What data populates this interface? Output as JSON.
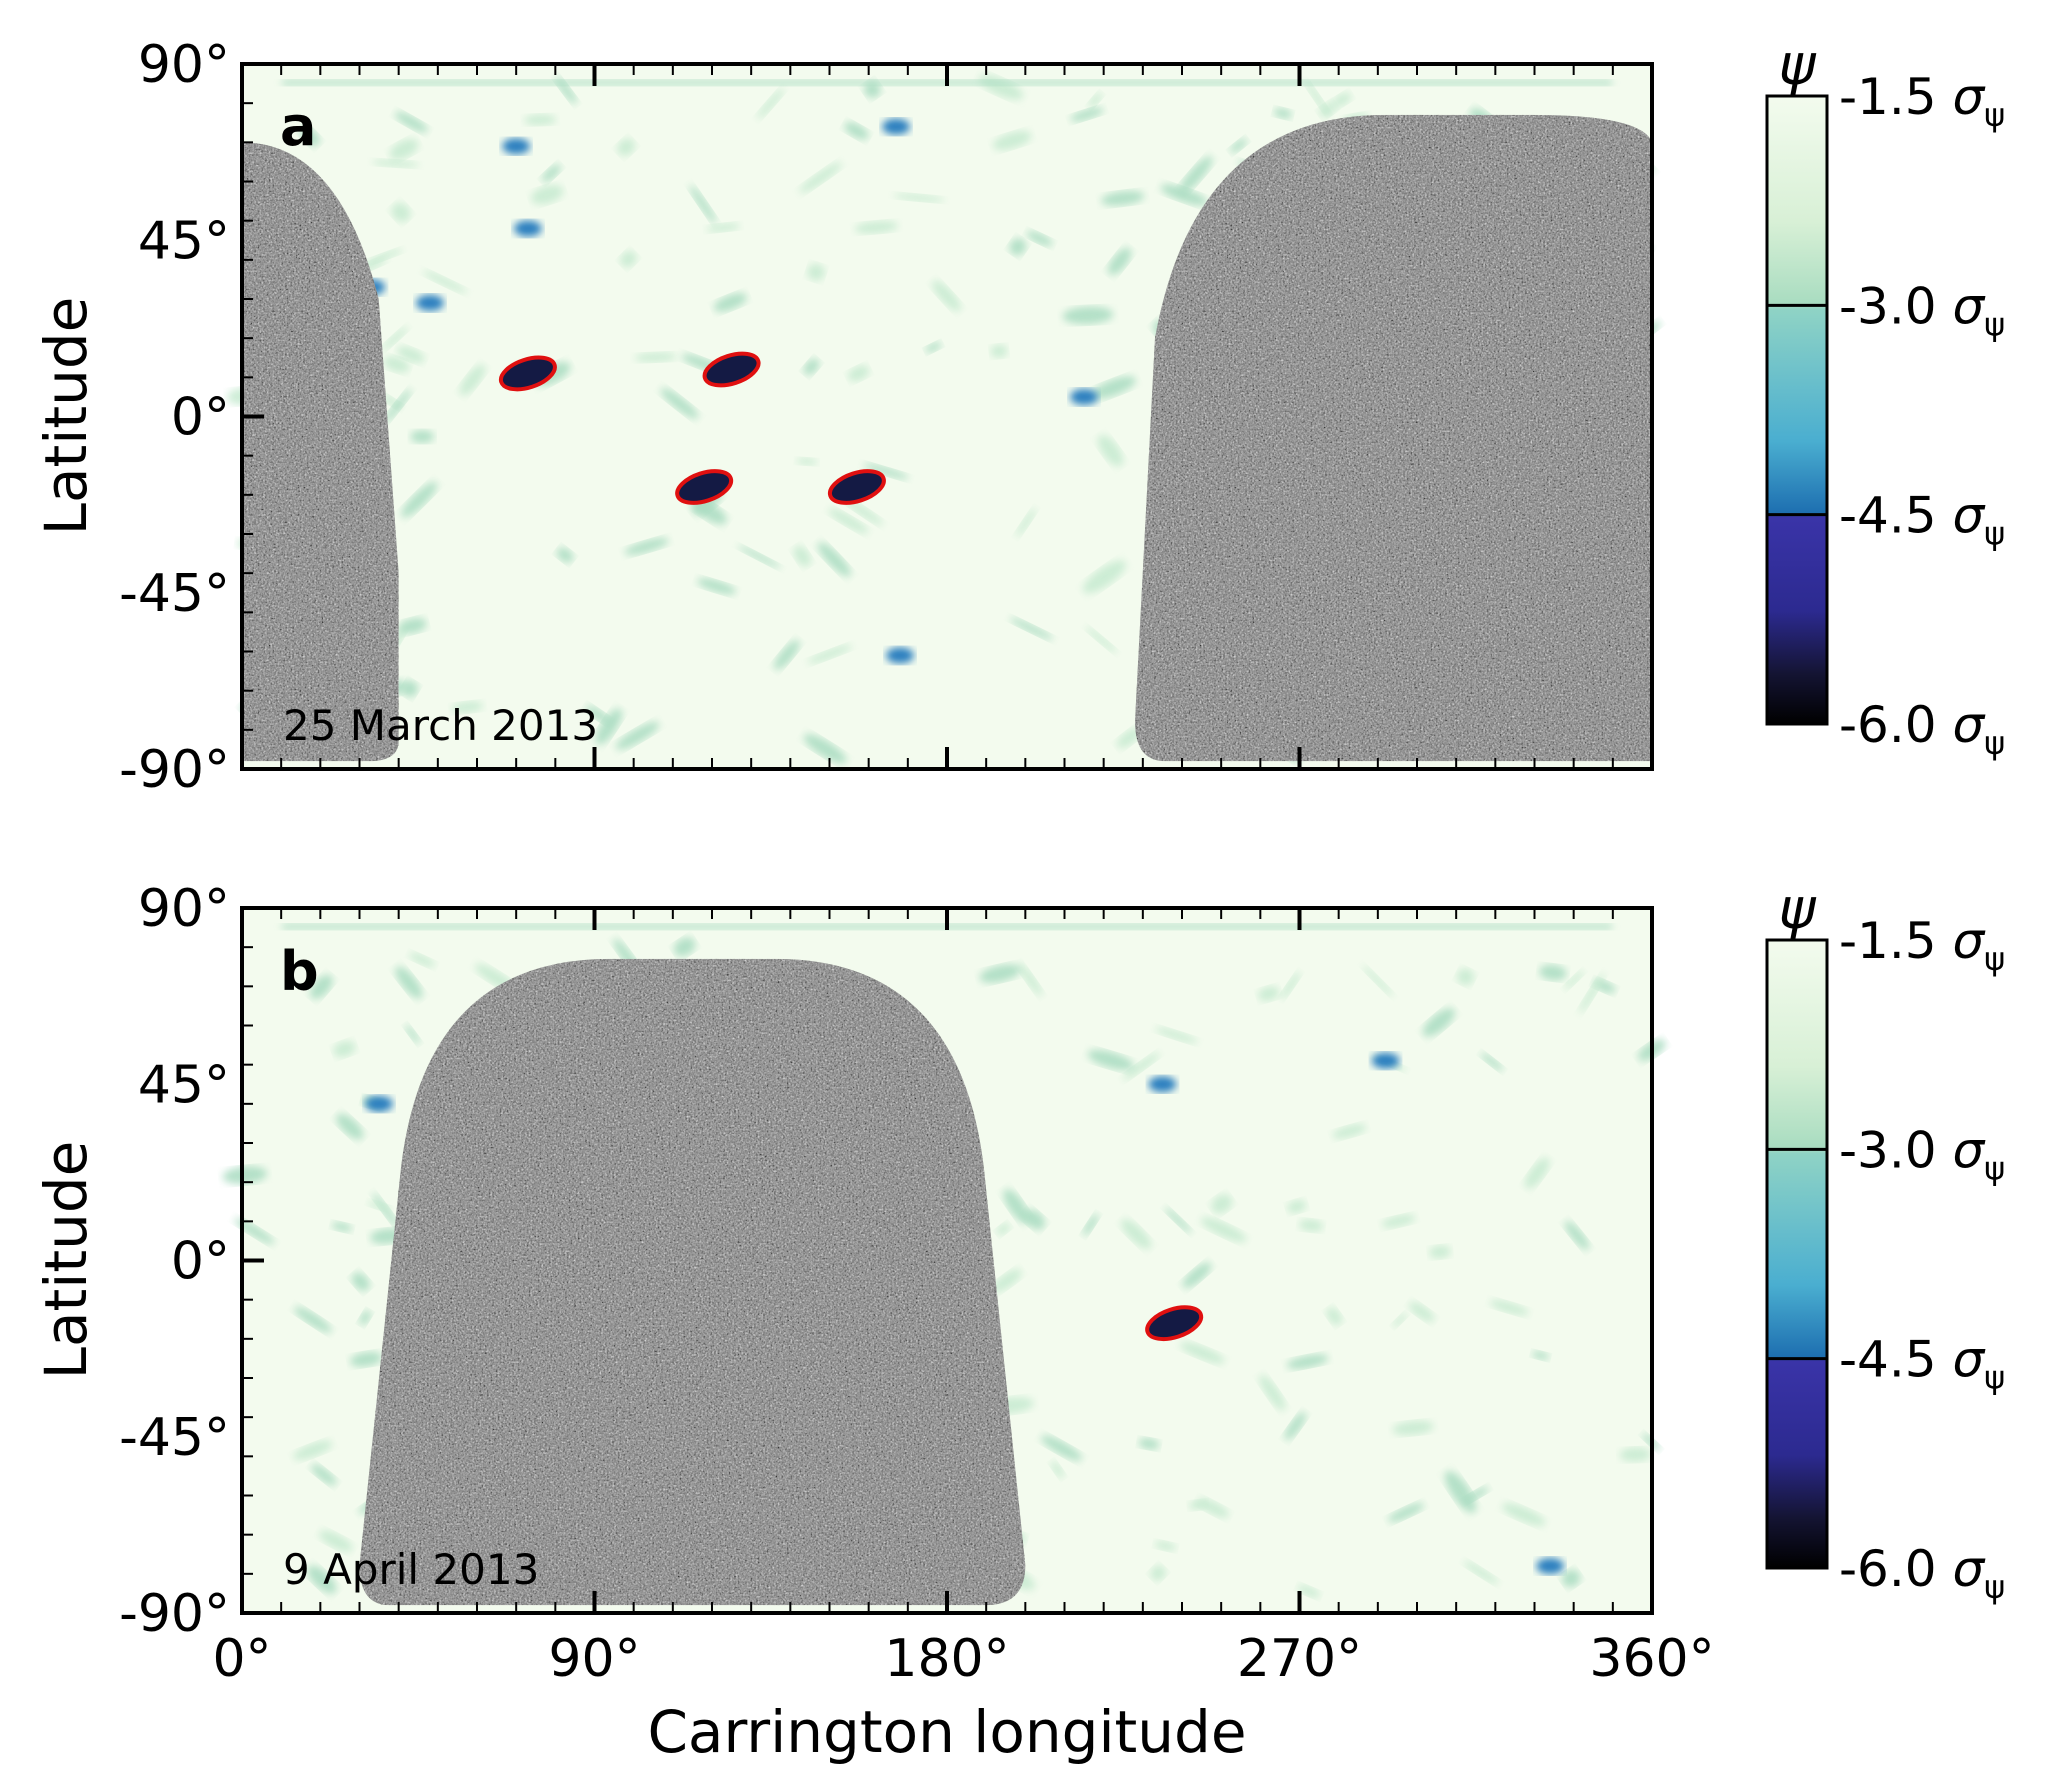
{
  "figure": {
    "xlabel": "Carrington longitude",
    "ylabel": "Latitude",
    "xticks": [
      "0°",
      "90°",
      "180°",
      "270°",
      "360°"
    ],
    "yticks": [
      "90°",
      "45°",
      "0°",
      "-45°",
      "-90°"
    ],
    "colorbar": {
      "symbol": "ψ",
      "ticks": [
        "-1.5",
        "-3.0",
        "-4.5",
        "-6.0"
      ],
      "unit_symbol": "σ",
      "unit_sub": "ψ",
      "colors": [
        "#f3fbee",
        "#d2eed6",
        "#9fdbbe",
        "#6cc5cc",
        "#3f9fc8",
        "#1d6eb0",
        "#2c2a99",
        "#30207a",
        "#000000"
      ]
    }
  },
  "chart_data": [
    {
      "type": "heatmap",
      "panel_label": "a",
      "date": "25 March 2013",
      "xlim": [
        0,
        360
      ],
      "ylim": [
        -90,
        90
      ],
      "magnetogram_region": {
        "lon_start": 0,
        "lon_end": 40,
        "wraps_from_left_edge": true
      },
      "magnetogram_region_2": {
        "lon_start": 228,
        "lon_end": 360
      },
      "contoured_regions": [
        {
          "lon": 73,
          "lat": 11
        },
        {
          "lon": 125,
          "lat": 12
        },
        {
          "lon": 118,
          "lat": -18
        },
        {
          "lon": 157,
          "lat": -18
        }
      ],
      "blue_patches": [
        {
          "lon": 70,
          "lat": 69
        },
        {
          "lon": 73,
          "lat": 48
        },
        {
          "lon": 48,
          "lat": 29
        },
        {
          "lon": 33,
          "lat": 33
        },
        {
          "lon": 168,
          "lat": -61
        },
        {
          "lon": 215,
          "lat": 5
        },
        {
          "lon": 167,
          "lat": 74
        }
      ]
    },
    {
      "type": "heatmap",
      "panel_label": "b",
      "date": "9 April 2013",
      "xlim": [
        0,
        360
      ],
      "ylim": [
        -90,
        90
      ],
      "magnetogram_region": {
        "lon_start": 30,
        "lon_end": 200
      },
      "contoured_regions": [
        {
          "lon": 238,
          "lat": -16
        }
      ],
      "blue_patches": [
        {
          "lon": 292,
          "lat": 51
        },
        {
          "lon": 235,
          "lat": 45
        },
        {
          "lon": 334,
          "lat": -78
        },
        {
          "lon": 35,
          "lat": 40
        }
      ]
    }
  ]
}
